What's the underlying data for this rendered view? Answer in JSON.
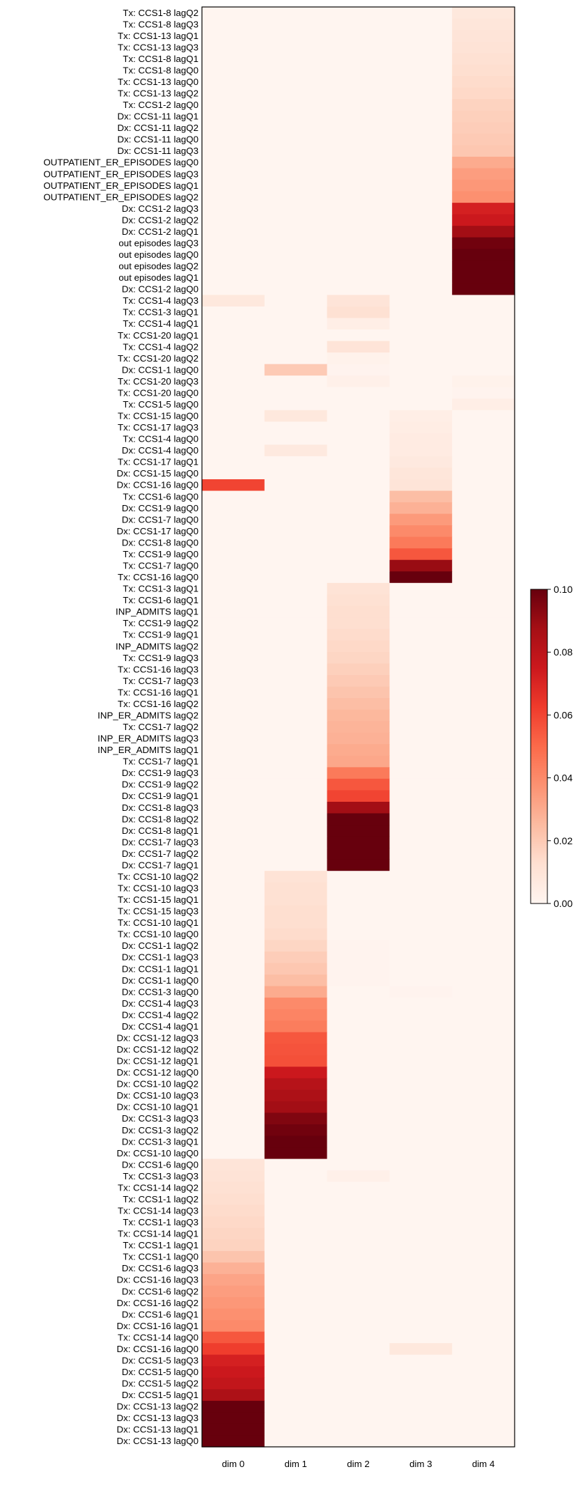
{
  "chart_data": {
    "type": "heatmap",
    "columns": [
      "dim 0",
      "dim 1",
      "dim 2",
      "dim 3",
      "dim 4"
    ],
    "rows": [
      "Tx: CCS1-8 lagQ2",
      "Tx: CCS1-8 lagQ3",
      "Tx: CCS1-13 lagQ1",
      "Tx: CCS1-13 lagQ3",
      "Tx: CCS1-8 lagQ1",
      "Tx: CCS1-8 lagQ0",
      "Tx: CCS1-13 lagQ0",
      "Tx: CCS1-13 lagQ2",
      "Tx: CCS1-2 lagQ0",
      "Dx: CCS1-11 lagQ1",
      "Dx: CCS1-11 lagQ2",
      "Dx: CCS1-11 lagQ0",
      "Dx: CCS1-11 lagQ3",
      "OUTPATIENT_ER_EPISODES lagQ0",
      "OUTPATIENT_ER_EPISODES lagQ3",
      "OUTPATIENT_ER_EPISODES lagQ1",
      "OUTPATIENT_ER_EPISODES lagQ2",
      "Dx: CCS1-2 lagQ3",
      "Dx: CCS1-2 lagQ2",
      "Dx: CCS1-2 lagQ1",
      "out episodes lagQ3",
      "out episodes lagQ0",
      "out episodes lagQ2",
      "out episodes lagQ1",
      "Dx: CCS1-2 lagQ0",
      "Tx: CCS1-4 lagQ3",
      "Tx: CCS1-3 lagQ1",
      "Tx: CCS1-4 lagQ1",
      "Tx: CCS1-20 lagQ1",
      "Tx: CCS1-4 lagQ2",
      "Tx: CCS1-20 lagQ2",
      "Dx: CCS1-1 lagQ0",
      "Tx: CCS1-20 lagQ3",
      "Tx: CCS1-20 lagQ0",
      "Tx: CCS1-5 lagQ0",
      "Tx: CCS1-15 lagQ0",
      "Tx: CCS1-17 lagQ3",
      "Tx: CCS1-4 lagQ0",
      "Dx: CCS1-4 lagQ0",
      "Tx: CCS1-17 lagQ1",
      "Dx: CCS1-15 lagQ0",
      "Dx: CCS1-16 lagQ0",
      "Tx: CCS1-6 lagQ0",
      "Dx: CCS1-9 lagQ0",
      "Dx: CCS1-7 lagQ0",
      "Dx: CCS1-17 lagQ0",
      "Dx: CCS1-8 lagQ0",
      "Tx: CCS1-9 lagQ0",
      "Tx: CCS1-7 lagQ0",
      "Tx: CCS1-16 lagQ0",
      "Tx: CCS1-3 lagQ1",
      "Tx: CCS1-6 lagQ1",
      "INP_ADMITS lagQ1",
      "Tx: CCS1-9 lagQ2",
      "Tx: CCS1-9 lagQ1",
      "INP_ADMITS lagQ2",
      "Tx: CCS1-9 lagQ3",
      "Tx: CCS1-16 lagQ3",
      "Tx: CCS1-7 lagQ3",
      "Tx: CCS1-16 lagQ1",
      "Tx: CCS1-16 lagQ2",
      "INP_ER_ADMITS lagQ2",
      "Tx: CCS1-7 lagQ2",
      "INP_ER_ADMITS lagQ3",
      "INP_ER_ADMITS lagQ1",
      "Tx: CCS1-7 lagQ1",
      "Dx: CCS1-9 lagQ3",
      "Dx: CCS1-9 lagQ2",
      "Dx: CCS1-9 lagQ1",
      "Dx: CCS1-8 lagQ3",
      "Dx: CCS1-8 lagQ2",
      "Dx: CCS1-8 lagQ1",
      "Dx: CCS1-7 lagQ3",
      "Dx: CCS1-7 lagQ2",
      "Dx: CCS1-7 lagQ1",
      "Tx: CCS1-10 lagQ2",
      "Tx: CCS1-10 lagQ3",
      "Tx: CCS1-15 lagQ1",
      "Tx: CCS1-15 lagQ3",
      "Tx: CCS1-10 lagQ1",
      "Tx: CCS1-10 lagQ0",
      "Dx: CCS1-1 lagQ2",
      "Dx: CCS1-1 lagQ3",
      "Dx: CCS1-1 lagQ1",
      "Dx: CCS1-1 lagQ0",
      "Dx: CCS1-3 lagQ0",
      "Dx: CCS1-4 lagQ3",
      "Dx: CCS1-4 lagQ2",
      "Dx: CCS1-4 lagQ1",
      "Dx: CCS1-12 lagQ3",
      "Dx: CCS1-12 lagQ2",
      "Dx: CCS1-12 lagQ1",
      "Dx: CCS1-12 lagQ0",
      "Dx: CCS1-10 lagQ2",
      "Dx: CCS1-10 lagQ3",
      "Dx: CCS1-10 lagQ1",
      "Dx: CCS1-3 lagQ3",
      "Dx: CCS1-3 lagQ2",
      "Dx: CCS1-3 lagQ1",
      "Dx: CCS1-10 lagQ0",
      "Dx: CCS1-6 lagQ0",
      "Tx: CCS1-3 lagQ3",
      "Tx: CCS1-14 lagQ2",
      "Tx: CCS1-1 lagQ2",
      "Tx: CCS1-14 lagQ3",
      "Tx: CCS1-1 lagQ3",
      "Tx: CCS1-14 lagQ1",
      "Tx: CCS1-1 lagQ1",
      "Tx: CCS1-1 lagQ0",
      "Dx: CCS1-6 lagQ3",
      "Dx: CCS1-16 lagQ3",
      "Dx: CCS1-6 lagQ2",
      "Dx: CCS1-16 lagQ2",
      "Dx: CCS1-6 lagQ1",
      "Dx: CCS1-16 lagQ1",
      "Tx: CCS1-14 lagQ0",
      "Dx: CCS1-16 lagQ0",
      "Dx: CCS1-5 lagQ3",
      "Dx: CCS1-5 lagQ0",
      "Dx: CCS1-5 lagQ2",
      "Dx: CCS1-5 lagQ1",
      "Dx: CCS1-13 lagQ2",
      "Dx: CCS1-13 lagQ3",
      "Dx: CCS1-13 lagQ1",
      "Dx: CCS1-13 lagQ0"
    ],
    "values": [
      [
        0,
        0,
        0,
        0,
        0.008
      ],
      [
        0,
        0,
        0,
        0,
        0.009
      ],
      [
        0,
        0,
        0,
        0,
        0.01
      ],
      [
        0,
        0,
        0,
        0,
        0.011
      ],
      [
        0,
        0,
        0,
        0,
        0.012
      ],
      [
        0,
        0,
        0,
        0,
        0.013
      ],
      [
        0,
        0,
        0,
        0,
        0.014
      ],
      [
        0,
        0,
        0,
        0,
        0.015
      ],
      [
        0,
        0,
        0,
        0,
        0.017
      ],
      [
        0,
        0,
        0,
        0,
        0.018
      ],
      [
        0,
        0,
        0,
        0,
        0.019
      ],
      [
        0,
        0,
        0,
        0,
        0.02
      ],
      [
        0,
        0,
        0,
        0,
        0.021
      ],
      [
        0,
        0,
        0,
        0,
        0.03
      ],
      [
        0,
        0,
        0,
        0,
        0.034
      ],
      [
        0,
        0,
        0,
        0,
        0.036
      ],
      [
        0,
        0,
        0,
        0,
        0.038
      ],
      [
        0,
        0,
        0,
        0,
        0.072
      ],
      [
        0,
        0,
        0,
        0,
        0.075
      ],
      [
        0,
        0,
        0,
        0,
        0.088
      ],
      [
        0,
        0,
        0,
        0,
        0.098
      ],
      [
        0,
        0,
        0,
        0,
        0.1
      ],
      [
        0,
        0,
        0,
        0,
        0.1
      ],
      [
        0,
        0,
        0,
        0,
        0.1
      ],
      [
        0,
        0,
        0,
        0,
        0.1
      ],
      [
        0.008,
        0,
        0.01,
        0,
        0
      ],
      [
        0,
        0,
        0.012,
        0,
        0
      ],
      [
        0,
        0,
        0.004,
        0,
        0
      ],
      [
        0,
        0,
        0,
        0,
        0
      ],
      [
        0,
        0,
        0.01,
        0,
        0
      ],
      [
        0,
        0,
        0.002,
        0,
        0
      ],
      [
        0,
        0.02,
        0.001,
        0,
        0
      ],
      [
        0,
        0,
        0.003,
        0,
        0.002
      ],
      [
        0,
        0,
        0,
        0,
        0.001
      ],
      [
        0,
        0,
        0,
        0,
        0.004
      ],
      [
        0,
        0.008,
        0,
        0.004,
        0
      ],
      [
        0,
        0,
        0,
        0.005,
        0
      ],
      [
        0,
        0,
        0,
        0.006,
        0
      ],
      [
        0,
        0.007,
        0,
        0.006,
        0
      ],
      [
        0,
        0,
        0,
        0.007,
        0
      ],
      [
        0,
        0,
        0,
        0.009,
        0
      ],
      [
        0.06,
        0,
        0,
        0.01,
        0
      ],
      [
        0,
        0,
        0,
        0.024,
        0
      ],
      [
        0,
        0,
        0,
        0.028,
        0
      ],
      [
        0,
        0,
        0,
        0.035,
        0
      ],
      [
        0,
        0,
        0,
        0.04,
        0
      ],
      [
        0,
        0,
        0,
        0.045,
        0
      ],
      [
        0,
        0,
        0,
        0.055,
        0
      ],
      [
        0,
        0,
        0,
        0.09,
        0
      ],
      [
        0,
        0,
        0,
        0.1,
        0
      ],
      [
        0,
        0,
        0.011,
        0,
        0
      ],
      [
        0,
        0,
        0.012,
        0,
        0
      ],
      [
        0,
        0,
        0.013,
        0,
        0
      ],
      [
        0,
        0,
        0.013,
        0,
        0
      ],
      [
        0,
        0,
        0.014,
        0,
        0
      ],
      [
        0,
        0,
        0.015,
        0,
        0
      ],
      [
        0,
        0,
        0.016,
        0,
        0
      ],
      [
        0,
        0,
        0.018,
        0,
        0
      ],
      [
        0,
        0,
        0.02,
        0,
        0
      ],
      [
        0,
        0,
        0.022,
        0,
        0
      ],
      [
        0,
        0,
        0.024,
        0,
        0
      ],
      [
        0,
        0,
        0.026,
        0,
        0
      ],
      [
        0,
        0,
        0.027,
        0,
        0
      ],
      [
        0,
        0,
        0.028,
        0,
        0
      ],
      [
        0,
        0,
        0.03,
        0,
        0
      ],
      [
        0,
        0,
        0.031,
        0,
        0
      ],
      [
        0,
        0,
        0.045,
        0,
        0
      ],
      [
        0,
        0,
        0.055,
        0,
        0
      ],
      [
        0,
        0,
        0.06,
        0,
        0
      ],
      [
        0,
        0,
        0.088,
        0,
        0
      ],
      [
        0,
        0,
        0.1,
        0,
        0
      ],
      [
        0,
        0,
        0.1,
        0,
        0
      ],
      [
        0,
        0,
        0.1,
        0,
        0
      ],
      [
        0,
        0,
        0.1,
        0,
        0
      ],
      [
        0,
        0,
        0.1,
        0,
        0
      ],
      [
        0,
        0.011,
        0,
        0,
        0
      ],
      [
        0,
        0.012,
        0,
        0,
        0
      ],
      [
        0,
        0.012,
        0,
        0,
        0
      ],
      [
        0,
        0.013,
        0,
        0,
        0
      ],
      [
        0,
        0.013,
        0,
        0,
        0
      ],
      [
        0,
        0.014,
        0,
        0,
        0
      ],
      [
        0,
        0.016,
        0.001,
        0,
        0
      ],
      [
        0,
        0.019,
        0.001,
        0,
        0
      ],
      [
        0,
        0.021,
        0.001,
        0,
        0
      ],
      [
        0,
        0.024,
        0.001,
        0,
        0
      ],
      [
        0,
        0.03,
        0,
        0.001,
        0
      ],
      [
        0,
        0.04,
        0,
        0,
        0
      ],
      [
        0,
        0.042,
        0,
        0,
        0
      ],
      [
        0,
        0.044,
        0,
        0,
        0
      ],
      [
        0,
        0.055,
        0,
        0,
        0
      ],
      [
        0,
        0.056,
        0,
        0,
        0
      ],
      [
        0,
        0.057,
        0,
        0,
        0
      ],
      [
        0,
        0.075,
        0,
        0,
        0
      ],
      [
        0,
        0.082,
        0,
        0,
        0
      ],
      [
        0,
        0.085,
        0,
        0,
        0
      ],
      [
        0,
        0.088,
        0,
        0,
        0
      ],
      [
        0,
        0.095,
        0,
        0,
        0
      ],
      [
        0,
        0.098,
        0,
        0,
        0
      ],
      [
        0,
        0.1,
        0,
        0,
        0
      ],
      [
        0,
        0.1,
        0,
        0,
        0
      ],
      [
        0.01,
        0,
        0,
        0,
        0
      ],
      [
        0.011,
        0,
        0.003,
        0,
        0
      ],
      [
        0.012,
        0,
        0,
        0,
        0
      ],
      [
        0.013,
        0,
        0,
        0,
        0
      ],
      [
        0.014,
        0,
        0,
        0,
        0
      ],
      [
        0.015,
        0,
        0,
        0,
        0
      ],
      [
        0.016,
        0,
        0,
        0,
        0
      ],
      [
        0.017,
        0,
        0,
        0,
        0
      ],
      [
        0.022,
        0,
        0,
        0,
        0
      ],
      [
        0.028,
        0,
        0,
        0,
        0
      ],
      [
        0.032,
        0,
        0,
        0,
        0
      ],
      [
        0.034,
        0,
        0,
        0,
        0
      ],
      [
        0.036,
        0,
        0,
        0,
        0
      ],
      [
        0.038,
        0,
        0,
        0,
        0
      ],
      [
        0.04,
        0,
        0,
        0,
        0
      ],
      [
        0.055,
        0,
        0,
        0,
        0
      ],
      [
        0.062,
        0,
        0,
        0.008,
        0
      ],
      [
        0.072,
        0,
        0,
        0,
        0
      ],
      [
        0.075,
        0,
        0,
        0,
        0
      ],
      [
        0.078,
        0,
        0,
        0,
        0
      ],
      [
        0.085,
        0,
        0,
        0,
        0
      ],
      [
        0.1,
        0,
        0,
        0,
        0
      ],
      [
        0.1,
        0,
        0,
        0,
        0
      ],
      [
        0.1,
        0,
        0,
        0,
        0
      ],
      [
        0.1,
        0,
        0,
        0,
        0
      ]
    ],
    "colorbar": {
      "min": 0.0,
      "max": 0.1,
      "ticks": [
        0.0,
        0.02,
        0.04,
        0.06,
        0.08,
        0.1
      ],
      "tick_labels": [
        "0.00",
        "0.02",
        "0.04",
        "0.06",
        "0.08",
        "0.10"
      ],
      "colormap": "Reds"
    },
    "title": "",
    "xlabel": "",
    "ylabel": ""
  }
}
